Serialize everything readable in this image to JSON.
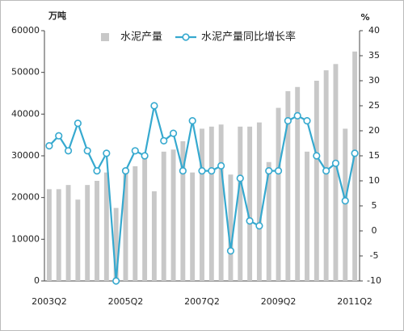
{
  "chart_data": {
    "type": "bar",
    "y_label": "万吨",
    "y2_label": "%",
    "categories": [
      "2003Q2",
      null,
      null,
      null,
      null,
      null,
      null,
      null,
      "2005Q2",
      null,
      null,
      null,
      null,
      null,
      null,
      null,
      "2007Q2",
      null,
      null,
      null,
      null,
      null,
      null,
      null,
      "2009Q2",
      null,
      null,
      null,
      null,
      null,
      null,
      null,
      "2011Q2"
    ],
    "series": [
      {
        "name": "水泥产量",
        "type": "bar",
        "color": "#c8c8c8",
        "values": [
          22000,
          22000,
          23000,
          19500,
          23000,
          24000,
          26000,
          17500,
          27000,
          27500,
          30000,
          21500,
          31000,
          31500,
          33500,
          26000,
          36500,
          37000,
          37500,
          25500,
          37000,
          37000,
          38000,
          28500,
          41500,
          45500,
          46500,
          31000,
          48000,
          50500,
          52000,
          36500,
          55000
        ]
      },
      {
        "name": "水泥产量同比增长率",
        "type": "line",
        "axis": "y2",
        "color": "#36a9cf",
        "values": [
          17,
          19,
          16,
          21.5,
          16,
          12,
          15.5,
          -10,
          12,
          16,
          15,
          25,
          18,
          19.5,
          12,
          22,
          12,
          12,
          13,
          -4,
          10.5,
          2,
          1,
          12,
          12,
          22,
          23,
          22,
          15,
          12,
          13.5,
          6,
          15.5
        ]
      }
    ],
    "ylim": [
      0,
      60000
    ],
    "yticks": [
      0,
      10000,
      20000,
      30000,
      40000,
      50000,
      60000
    ],
    "y2lim": [
      -10,
      40
    ],
    "y2ticks": [
      -10,
      -5,
      0,
      5,
      10,
      15,
      20,
      25,
      30,
      35,
      40
    ],
    "grid": false
  }
}
